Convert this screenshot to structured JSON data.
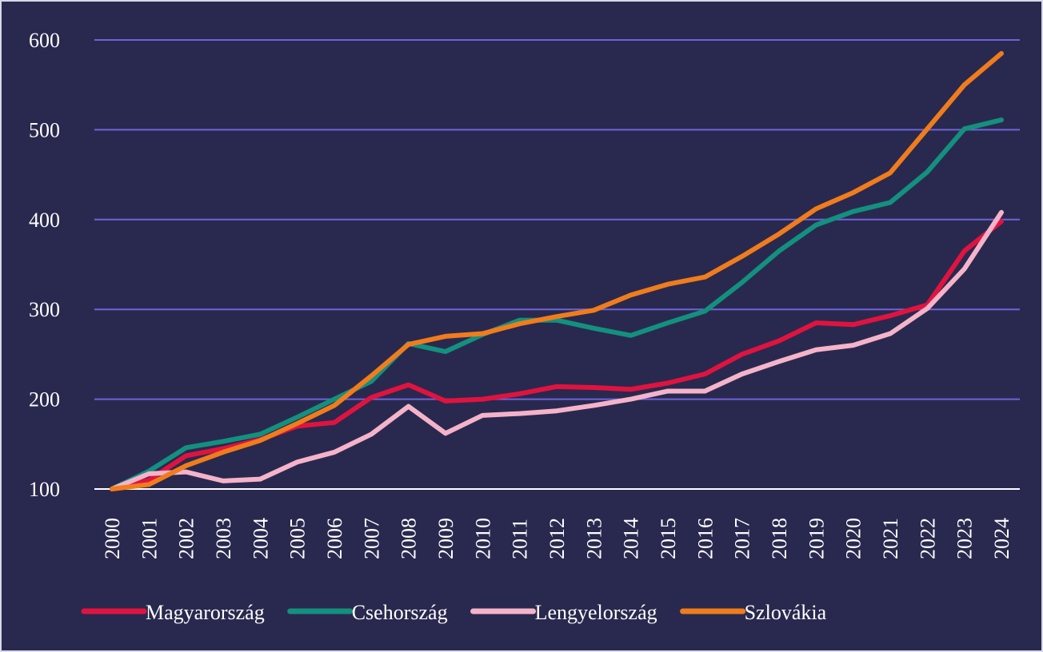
{
  "chart_data": {
    "type": "line",
    "x": [
      2000,
      2001,
      2002,
      2003,
      2004,
      2005,
      2006,
      2007,
      2008,
      2009,
      2010,
      2011,
      2012,
      2013,
      2014,
      2015,
      2016,
      2017,
      2018,
      2019,
      2020,
      2021,
      2022,
      2023,
      2024
    ],
    "xlim": [
      2000,
      2024
    ],
    "ylim": [
      100,
      600
    ],
    "yticks": [
      100,
      200,
      300,
      400,
      500,
      600
    ],
    "grid": true,
    "legend": "bottom",
    "series": [
      {
        "name": "Magyarország",
        "color": "#e0133f",
        "values": [
          100,
          110,
          137,
          145,
          155,
          170,
          174,
          202,
          216,
          198,
          200,
          206,
          214,
          213,
          211,
          218,
          228,
          250,
          265,
          285,
          283,
          293,
          305,
          365,
          398
        ]
      },
      {
        "name": "Csehország",
        "color": "#13907e",
        "values": [
          100,
          120,
          146,
          153,
          161,
          180,
          200,
          220,
          262,
          253,
          272,
          288,
          288,
          279,
          271,
          285,
          298,
          330,
          365,
          394,
          409,
          419,
          453,
          501,
          511
        ]
      },
      {
        "name": "Lengyelország",
        "color": "#f5b3c9",
        "values": [
          100,
          117,
          119,
          109,
          111,
          130,
          141,
          161,
          192,
          162,
          182,
          184,
          187,
          193,
          200,
          209,
          209,
          228,
          242,
          255,
          260,
          273,
          301,
          345,
          408
        ]
      },
      {
        "name": "Szlovákia",
        "color": "#f07c1c",
        "values": [
          100,
          105,
          126,
          141,
          154,
          173,
          193,
          226,
          261,
          270,
          273,
          284,
          292,
          299,
          316,
          328,
          336,
          359,
          384,
          412,
          430,
          452,
          501,
          550,
          585
        ]
      }
    ]
  }
}
